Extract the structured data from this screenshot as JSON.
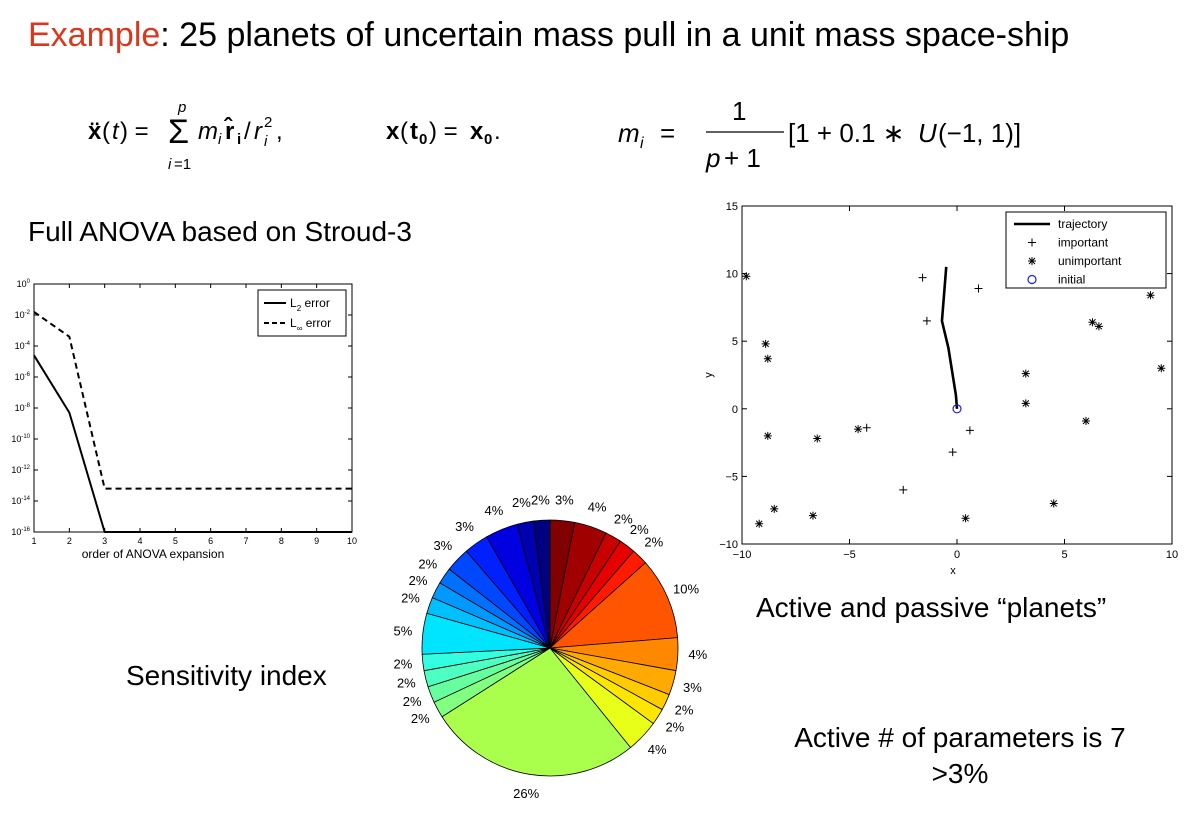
{
  "title": {
    "prefix": "Example",
    "rest": ": 25 planets of uncertain mass pull in a unit mass space-ship"
  },
  "equations": {
    "ode": "ẍ(t) = Σ_{i=1}^{p} m_i r̂_i / r_i²,",
    "init": "x(t₀) = x₀.",
    "mass": "m_i = 1/(p+1) [1 + 0.1 * U(−1, 1)]"
  },
  "labels": {
    "anova_heading": "Full ANOVA based on Stroud-3",
    "sensitivity": "Sensitivity index",
    "active_passive": "Active and passive “planets”",
    "active_count_line1": "Active # of parameters is 7",
    "active_count_line2": ">3%"
  },
  "chart_data": [
    {
      "type": "line",
      "xlabel": "order of ANOVA expansion",
      "ylabel": "",
      "x": [
        1,
        2,
        3,
        4,
        5,
        6,
        7,
        8,
        9,
        10
      ],
      "ylim_log10": [
        -16,
        0
      ],
      "yscale": "log",
      "y_ticks": [
        "10^0",
        "10^-2",
        "10^-4",
        "10^-6",
        "10^-8",
        "10^-10",
        "10^-12",
        "10^-14",
        "10^-16"
      ],
      "x_ticks": [
        "1",
        "2",
        "3",
        "4",
        "5",
        "6",
        "7",
        "8",
        "9",
        "10"
      ],
      "series": [
        {
          "name": "L2 error",
          "style": "solid",
          "log10_values": [
            -4.6,
            -8.3,
            -16,
            -16,
            -16,
            -16,
            -16,
            -16,
            -16,
            -16
          ]
        },
        {
          "name": "L∞ error",
          "style": "dashed",
          "log10_values": [
            -1.8,
            -3.4,
            -13.2,
            -13.2,
            -13.2,
            -13.2,
            -13.2,
            -13.2,
            -13.2,
            -13.2
          ]
        }
      ],
      "legend": "top-right",
      "legend_labels": {
        "l2": "L",
        "l2_sub": "2",
        "linf": "L",
        "linf_sub": "∞",
        "error": "error"
      }
    },
    {
      "type": "pie",
      "title": "",
      "slices": [
        {
          "label": "3%",
          "value": 3,
          "color": "#800000"
        },
        {
          "label": "4%",
          "value": 4,
          "color": "#a00000"
        },
        {
          "label": "2%",
          "value": 2,
          "color": "#c80000"
        },
        {
          "label": "2%",
          "value": 2,
          "color": "#e60000"
        },
        {
          "label": "2%",
          "value": 2,
          "color": "#ff1a00"
        },
        {
          "label": "10%",
          "value": 10,
          "color": "#ff5500"
        },
        {
          "label": "4%",
          "value": 4,
          "color": "#ff8800"
        },
        {
          "label": "3%",
          "value": 3,
          "color": "#ffaa00"
        },
        {
          "label": "2%",
          "value": 2,
          "color": "#ffcc00"
        },
        {
          "label": "2%",
          "value": 2,
          "color": "#ffe600"
        },
        {
          "label": "4%",
          "value": 4,
          "color": "#e8ff1a"
        },
        {
          "label": "26%",
          "value": 26,
          "color": "#aaff4d"
        },
        {
          "label": "2%",
          "value": 2,
          "color": "#80ff80"
        },
        {
          "label": "2%",
          "value": 2,
          "color": "#66ffa0"
        },
        {
          "label": "2%",
          "value": 2,
          "color": "#4dffc0"
        },
        {
          "label": "2%",
          "value": 2,
          "color": "#33ffe0"
        },
        {
          "label": "5%",
          "value": 5,
          "color": "#00e5ff"
        },
        {
          "label": "2%",
          "value": 2,
          "color": "#00c0ff"
        },
        {
          "label": "2%",
          "value": 2,
          "color": "#0099ff"
        },
        {
          "label": "2%",
          "value": 2,
          "color": "#0070ff"
        },
        {
          "label": "3%",
          "value": 3,
          "color": "#0048ff"
        },
        {
          "label": "3%",
          "value": 3,
          "color": "#0020ff"
        },
        {
          "label": "4%",
          "value": 4,
          "color": "#0000e0"
        },
        {
          "label": "2%",
          "value": 2,
          "color": "#0000b0"
        },
        {
          "label": "2%",
          "value": 2,
          "color": "#000080"
        }
      ]
    },
    {
      "type": "scatter",
      "xlabel": "x",
      "ylabel": "y",
      "xlim": [
        -10,
        10
      ],
      "ylim": [
        -10,
        15
      ],
      "x_ticks": [
        "−10",
        "−5",
        "0",
        "5",
        "10"
      ],
      "y_ticks": [
        "15",
        "10",
        "5",
        "0",
        "−5",
        "−10"
      ],
      "legend": "top-right",
      "series": [
        {
          "name": "trajectory",
          "style": "line",
          "color": "#000000",
          "points": [
            [
              -0.5,
              10.5
            ],
            [
              -0.6,
              8.5
            ],
            [
              -0.7,
              6.5
            ],
            [
              -0.4,
              4.5
            ],
            [
              -0.2,
              2.5
            ],
            [
              -0.05,
              1.0
            ],
            [
              0,
              0
            ]
          ]
        },
        {
          "name": "important",
          "marker": "+",
          "color": "#000000",
          "points": [
            [
              -1.6,
              9.7
            ],
            [
              1.0,
              8.9
            ],
            [
              -1.4,
              6.5
            ],
            [
              -4.2,
              -1.4
            ],
            [
              0.6,
              -1.6
            ],
            [
              -0.2,
              -3.2
            ],
            [
              -2.5,
              -6.0
            ]
          ]
        },
        {
          "name": "unimportant",
          "marker": "*",
          "color": "#000000",
          "points": [
            [
              -9.8,
              9.8
            ],
            [
              -8.9,
              4.8
            ],
            [
              -8.8,
              3.7
            ],
            [
              -8.8,
              -2.0
            ],
            [
              -6.5,
              -2.2
            ],
            [
              -4.6,
              -1.5
            ],
            [
              -9.2,
              -8.5
            ],
            [
              -8.5,
              -7.4
            ],
            [
              -6.7,
              -7.9
            ],
            [
              0.4,
              -8.1
            ],
            [
              3.2,
              2.6
            ],
            [
              3.2,
              0.4
            ],
            [
              6.3,
              6.4
            ],
            [
              6.6,
              6.1
            ],
            [
              9.0,
              8.4
            ],
            [
              9.5,
              3.0
            ],
            [
              6.0,
              -0.9
            ],
            [
              4.5,
              -7.0
            ]
          ]
        },
        {
          "name": "initial",
          "marker": "o",
          "color": "#2020d0",
          "points": [
            [
              0,
              0
            ]
          ]
        }
      ]
    }
  ]
}
